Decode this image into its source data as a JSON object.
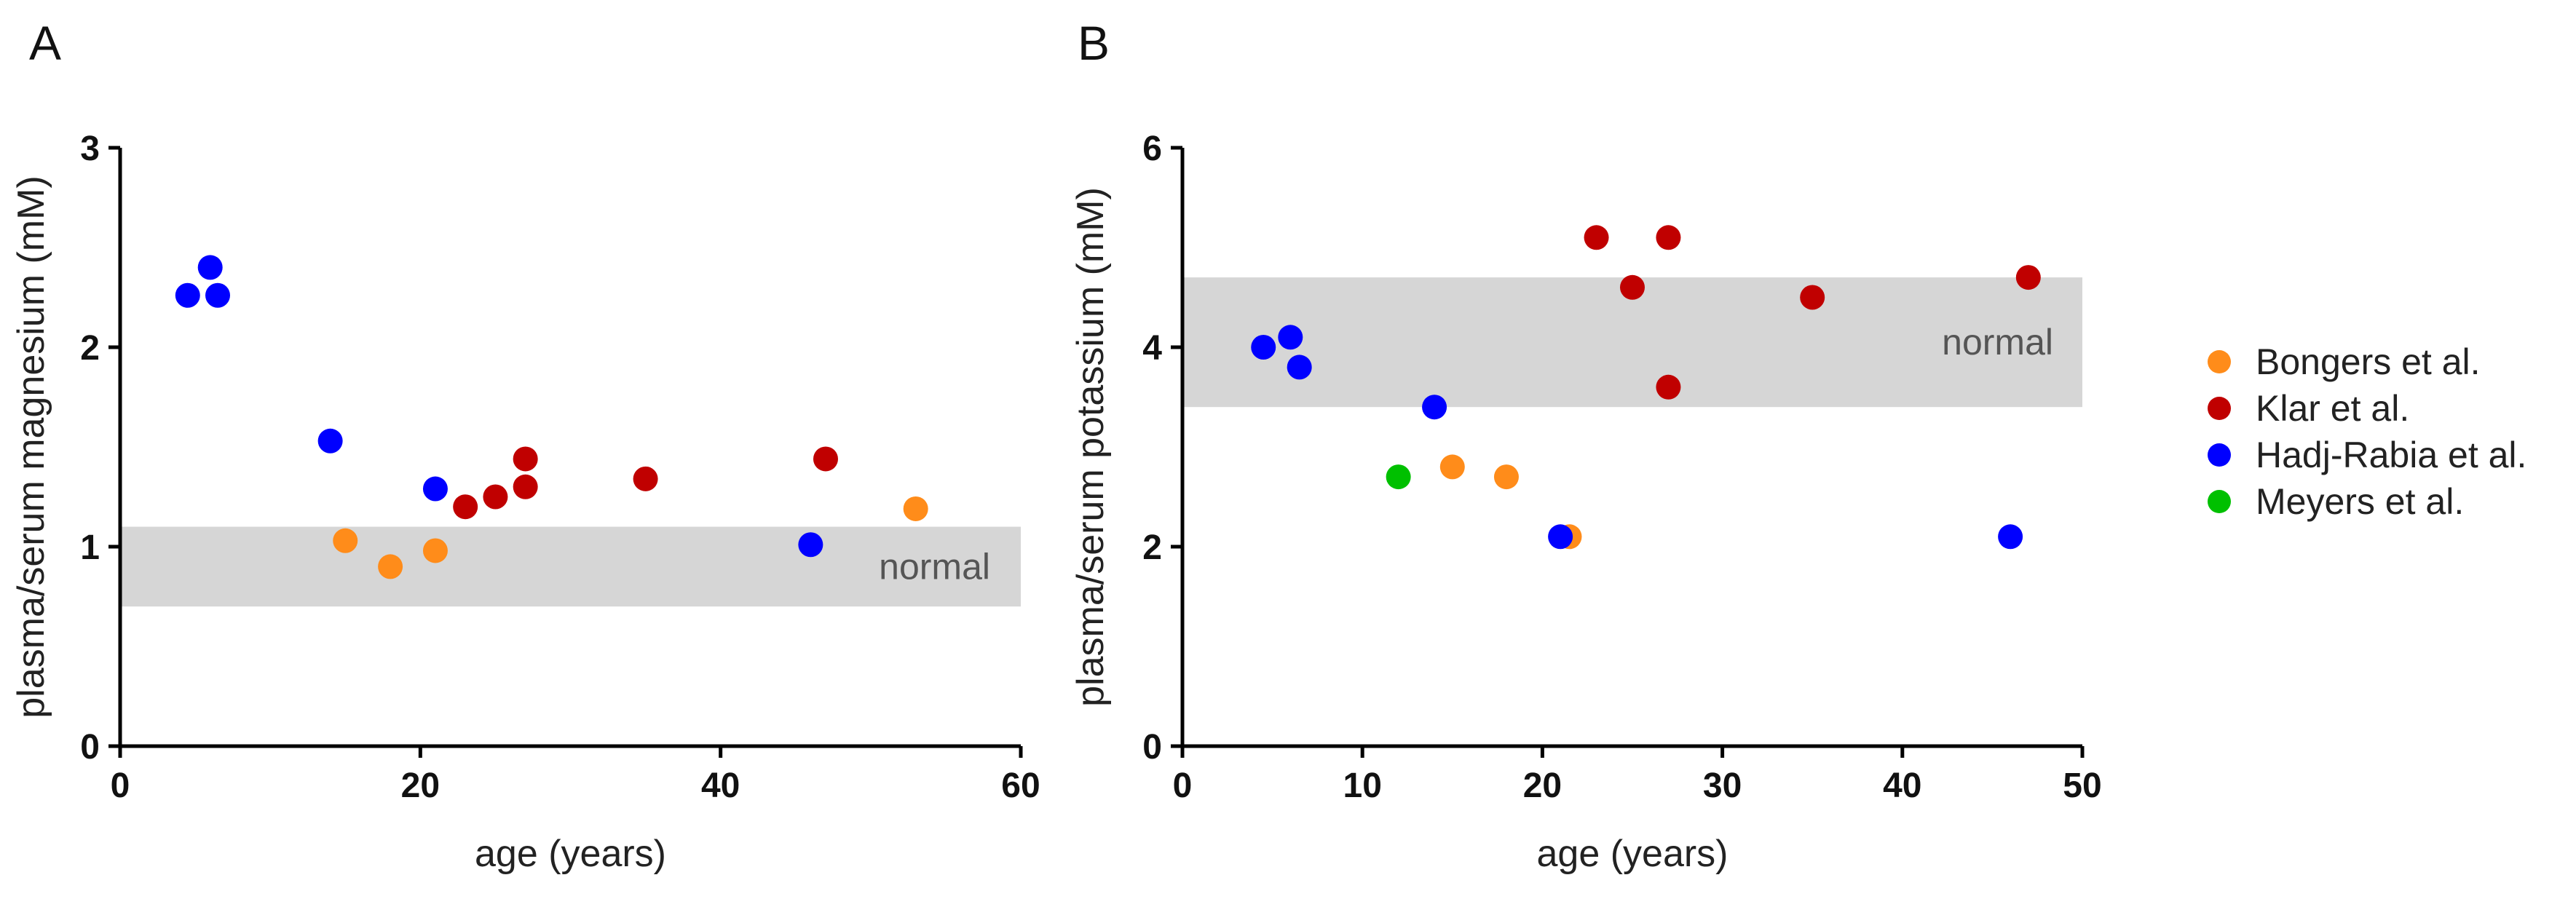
{
  "legend": {
    "series": [
      {
        "name": "Bongers et al.",
        "color": "#ff8c1a"
      },
      {
        "name": "Klar et al.",
        "color": "#c00000"
      },
      {
        "name": "Hadj-Rabia et al.",
        "color": "#0000ff"
      },
      {
        "name": "Meyers et al.",
        "color": "#00c000"
      }
    ]
  },
  "chart_data": [
    {
      "panel": "A",
      "type": "scatter",
      "title": "",
      "xlabel": "age (years)",
      "ylabel": "plasma/serum magnesium (mM)",
      "xlim": [
        0,
        60
      ],
      "ylim": [
        0,
        3
      ],
      "xticks": [
        0,
        20,
        40,
        60
      ],
      "yticks": [
        0,
        1,
        2,
        3
      ],
      "normal_range": {
        "label": "normal",
        "low": 0.7,
        "high": 1.1
      },
      "series": [
        {
          "name": "Bongers et al.",
          "color": "#ff8c1a",
          "points": [
            [
              15,
              1.03
            ],
            [
              18,
              0.9
            ],
            [
              21,
              0.98
            ],
            [
              53,
              1.19
            ]
          ]
        },
        {
          "name": "Klar et al.",
          "color": "#c00000",
          "points": [
            [
              23,
              1.2
            ],
            [
              25,
              1.25
            ],
            [
              27,
              1.3
            ],
            [
              27,
              1.44
            ],
            [
              35,
              1.34
            ],
            [
              47,
              1.44
            ]
          ]
        },
        {
          "name": "Hadj-Rabia et al.",
          "color": "#0000ff",
          "points": [
            [
              4.5,
              2.26
            ],
            [
              6,
              2.4
            ],
            [
              6.5,
              2.26
            ],
            [
              14,
              1.53
            ],
            [
              21,
              1.29
            ],
            [
              46,
              1.01
            ]
          ]
        }
      ]
    },
    {
      "panel": "B",
      "type": "scatter",
      "title": "",
      "xlabel": "age (years)",
      "ylabel": "plasma/serum potassium (mM)",
      "xlim": [
        0,
        50
      ],
      "ylim": [
        0,
        6
      ],
      "xticks": [
        0,
        10,
        20,
        30,
        40,
        50
      ],
      "yticks": [
        0,
        2,
        4,
        6
      ],
      "normal_range": {
        "label": "normal",
        "low": 3.4,
        "high": 4.7
      },
      "series": [
        {
          "name": "Bongers et al.",
          "color": "#ff8c1a",
          "points": [
            [
              15,
              2.8
            ],
            [
              18,
              2.7
            ],
            [
              21.5,
              2.1
            ]
          ]
        },
        {
          "name": "Klar et al.",
          "color": "#c00000",
          "points": [
            [
              23,
              5.1
            ],
            [
              27,
              5.1
            ],
            [
              25,
              4.6
            ],
            [
              27,
              3.6
            ],
            [
              35,
              4.5
            ],
            [
              47,
              4.7
            ]
          ]
        },
        {
          "name": "Hadj-Rabia et al.",
          "color": "#0000ff",
          "points": [
            [
              4.5,
              4.0
            ],
            [
              6,
              4.1
            ],
            [
              6.5,
              3.8
            ],
            [
              14,
              3.4
            ],
            [
              21,
              2.1
            ],
            [
              46,
              2.1
            ]
          ]
        },
        {
          "name": "Meyers et al.",
          "color": "#00c000",
          "points": [
            [
              12,
              2.7
            ]
          ]
        }
      ]
    }
  ]
}
